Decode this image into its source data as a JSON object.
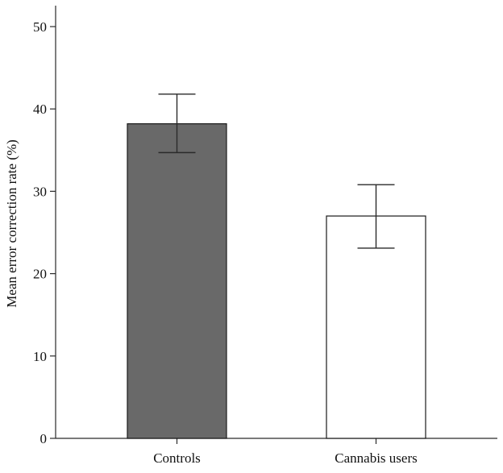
{
  "chart_data": {
    "type": "bar",
    "title": "",
    "xlabel": "",
    "ylabel": "Mean error correction rate (%)",
    "ylim": [
      0,
      50
    ],
    "yticks": [
      0,
      10,
      20,
      30,
      40,
      50
    ],
    "grid": false,
    "legend": "none",
    "categories": [
      "Controls",
      "Cannabis users"
    ],
    "values": [
      38.2,
      27.0
    ],
    "error_low": [
      34.7,
      23.1
    ],
    "error_high": [
      41.8,
      30.8
    ],
    "colors": [
      "#696969",
      "#ffffff"
    ],
    "edge_color": "#1a1a1a"
  }
}
